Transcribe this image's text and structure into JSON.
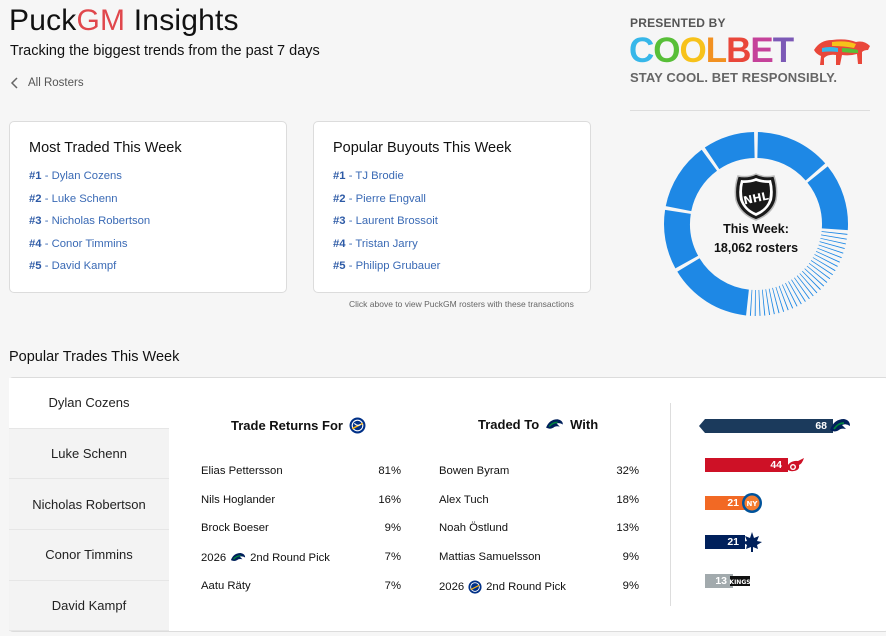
{
  "header": {
    "title_a": "Puck",
    "title_b": "GM",
    "title_c": " Insights",
    "subtitle": "Tracking the biggest trends from the past 7 days",
    "back_label": "All Rosters"
  },
  "sponsor": {
    "presented_by": "PRESENTED BY",
    "logo_letters": [
      "C",
      "O",
      "O",
      "L",
      "B",
      "E",
      "T"
    ],
    "tagline": "STAY COOL. BET RESPONSIBLY.",
    "icon": "polar-bear-icon"
  },
  "most_traded": {
    "title": "Most Traded This Week",
    "items": [
      {
        "rank": "#1",
        "name": " - Dylan Cozens"
      },
      {
        "rank": "#2",
        "name": " - Luke Schenn"
      },
      {
        "rank": "#3",
        "name": " - Nicholas Robertson"
      },
      {
        "rank": "#4",
        "name": " - Conor Timmins"
      },
      {
        "rank": "#5",
        "name": " - David Kampf"
      }
    ]
  },
  "buyouts": {
    "title": "Popular Buyouts This Week",
    "items": [
      {
        "rank": "#1",
        "name": " - TJ Brodie"
      },
      {
        "rank": "#2",
        "name": " - Pierre Engvall"
      },
      {
        "rank": "#3",
        "name": " - Laurent Brossoit"
      },
      {
        "rank": "#4",
        "name": " - Tristan Jarry"
      },
      {
        "rank": "#5",
        "name": " - Philipp Grubauer"
      }
    ]
  },
  "hint": "Click above to view PuckGM rosters with these transactions",
  "weekly": {
    "label": "This Week:",
    "value": "18,062 rosters",
    "color": "#1e88e5",
    "icon": "nhl-shield-icon"
  },
  "popular_trades": {
    "title": "Popular Trades This Week",
    "tabs": [
      "Dylan Cozens",
      "Luke Schenn",
      "Nicholas Robertson",
      "Conor Timmins",
      "David Kampf"
    ],
    "active_tab": 0,
    "returns_title": "Trade Returns For",
    "traded_to_title_a": "Traded To",
    "traded_to_title_b": "With",
    "returns": [
      {
        "name": "Elias Pettersson",
        "pct": "81%"
      },
      {
        "name": "Nils Hoglander",
        "pct": "16%"
      },
      {
        "name": "Brock Boeser",
        "pct": "9%"
      },
      {
        "pre": "2026",
        "name": "2nd Round Pick",
        "pct": "7%",
        "logo": "canucks-icon"
      },
      {
        "name": "Aatu Räty",
        "pct": "7%"
      }
    ],
    "traded_with": [
      {
        "name": "Bowen Byram",
        "pct": "32%"
      },
      {
        "name": "Alex Tuch",
        "pct": "18%"
      },
      {
        "name": "Noah Östlund",
        "pct": "13%"
      },
      {
        "name": "Mattias Samuelsson",
        "pct": "9%"
      },
      {
        "pre": "2026",
        "name": "2nd Round Pick",
        "pct": "9%",
        "logo": "sabres-icon"
      }
    ],
    "destinations": [
      {
        "team": "canucks",
        "value": 68,
        "color": "#1b3a5c",
        "label": "68"
      },
      {
        "team": "red-wings",
        "value": 44,
        "color": "#ce1126",
        "label": "44"
      },
      {
        "team": "islanders",
        "value": 21,
        "color": "#f26924",
        "label": "21"
      },
      {
        "team": "maple-leafs",
        "value": 21,
        "color": "#00205b",
        "label": "21"
      },
      {
        "team": "kings",
        "value": 13,
        "color": "#a2aaad",
        "label": "13"
      }
    ]
  }
}
